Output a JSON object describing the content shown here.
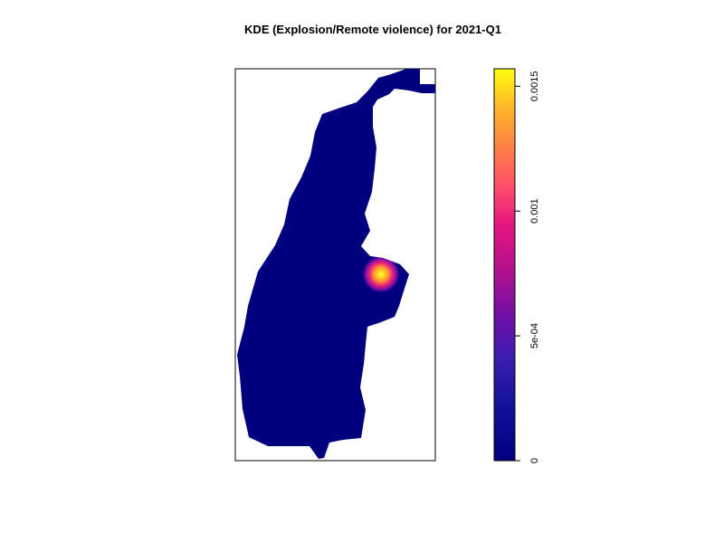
{
  "chart_data": {
    "type": "heatmap",
    "title": "KDE (Explosion/Remote violence) for 2021-Q1",
    "xlabel": "",
    "ylabel": "",
    "grid": false,
    "colorbar": {
      "position": "right",
      "range": [
        0,
        0.00157
      ],
      "ticks": [
        {
          "value": 0,
          "label": "0"
        },
        {
          "value": 0.0005,
          "label": "5e-04"
        },
        {
          "value": 0.001,
          "label": "0.001"
        },
        {
          "value": 0.0015,
          "label": "0.0015"
        }
      ],
      "colors": [
        "#00007f",
        "#1e1ea0",
        "#6b0fa8",
        "#c8108c",
        "#ff2a6a",
        "#ff7a4a",
        "#ffb82a",
        "#ffff00"
      ]
    },
    "background_density": 0,
    "hotspot": {
      "peak_density": 0.00155
    }
  }
}
